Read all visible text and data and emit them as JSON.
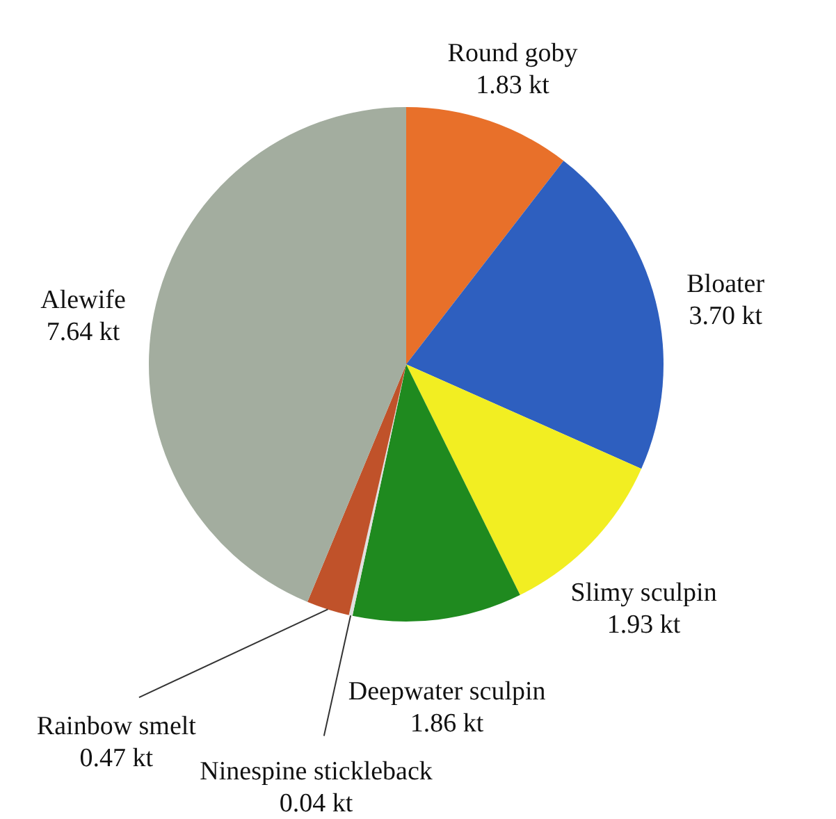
{
  "chart_data": {
    "type": "pie",
    "categories": [
      "Round goby",
      "Bloater",
      "Slimy sculpin",
      "Deepwater sculpin",
      "Ninespine stickleback",
      "Rainbow smelt",
      "Alewife"
    ],
    "values": [
      1.83,
      3.7,
      1.93,
      1.86,
      0.04,
      0.47,
      7.64
    ],
    "value_labels": [
      "1.83 kt",
      "3.70 kt",
      "1.93 kt",
      "1.86 kt",
      "0.04 kt",
      "0.47 kt",
      "7.64 kt"
    ],
    "colors": [
      "#e8702a",
      "#2e5fbf",
      "#f2ee22",
      "#1f8a1f",
      "#e0e0e0",
      "#c0522a",
      "#a3ad9f"
    ]
  }
}
